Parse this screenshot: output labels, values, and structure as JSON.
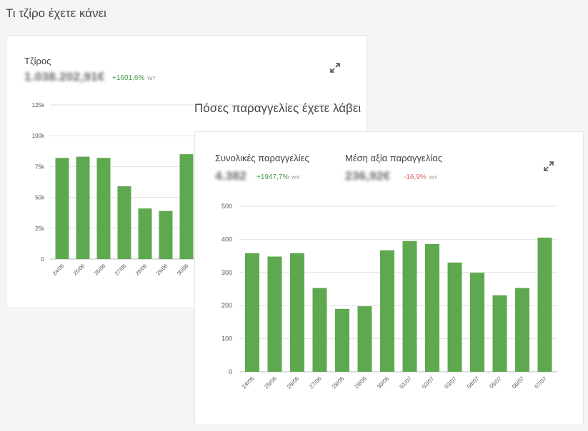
{
  "revenue": {
    "section_title": "Τι τζίρο έχετε κάνει",
    "metric_label": "Τζίρος",
    "value": "1.038.202,91€",
    "delta": "+1601,6%",
    "delta_suffix": "YoY",
    "expand_icon": "expand-arrows-icon",
    "chart_data": {
      "type": "bar",
      "title": "",
      "categories": [
        "24/06",
        "25/06",
        "26/06",
        "27/06",
        "28/06",
        "29/06",
        "30/06"
      ],
      "values": [
        82000,
        83000,
        82000,
        59000,
        41000,
        39000,
        85000
      ],
      "y_ticks": [
        0,
        25000,
        50000,
        75000,
        100000,
        125000
      ],
      "y_tick_labels": [
        "0",
        "25k",
        "50k",
        "75k",
        "100k",
        "125k"
      ],
      "ylim": [
        0,
        125000
      ],
      "color": "#5ea84f"
    }
  },
  "orders": {
    "section_title": "Πόσες παραγγελίες έχετε λάβει",
    "metric1_label": "Συνολικές παραγγελίες",
    "metric1_value": "4.382",
    "metric1_delta": "+1947,7%",
    "metric1_suffix": "YoY",
    "metric2_label": "Μέση αξία παραγγελίας",
    "metric2_value": "236,92€",
    "metric2_delta": "-16,9%",
    "metric2_suffix": "YoY",
    "expand_icon": "expand-arrows-icon",
    "chart_data": {
      "type": "bar",
      "title": "",
      "categories": [
        "24/06",
        "25/06",
        "26/06",
        "27/06",
        "28/06",
        "29/06",
        "30/06",
        "01/07",
        "02/07",
        "03/07",
        "04/07",
        "05/07",
        "06/07",
        "07/07"
      ],
      "values": [
        358,
        348,
        358,
        253,
        190,
        198,
        367,
        395,
        386,
        330,
        299,
        231,
        253,
        405
      ],
      "y_ticks": [
        0,
        100,
        200,
        300,
        400,
        500
      ],
      "y_tick_labels": [
        "0",
        "100",
        "200",
        "300",
        "400",
        "500"
      ],
      "ylim": [
        0,
        500
      ],
      "color": "#5ea84f"
    }
  },
  "colors": {
    "positive": "#4a9a48",
    "negative": "#e06666",
    "bar": "#5ea84f"
  }
}
